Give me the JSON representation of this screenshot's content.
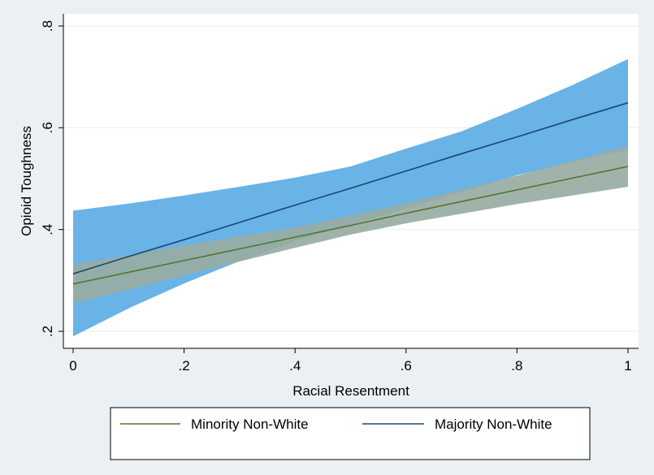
{
  "chart_data": {
    "type": "line",
    "xlabel": "Racial Resentment",
    "ylabel": "Opioid Toughness",
    "xlim": [
      0,
      1
    ],
    "ylim": [
      0.2,
      0.8
    ],
    "x_ticks": [
      {
        "value": 0,
        "label": "0"
      },
      {
        "value": 0.2,
        "label": ".2"
      },
      {
        "value": 0.4,
        "label": ".4"
      },
      {
        "value": 0.6,
        "label": ".6"
      },
      {
        "value": 0.8,
        "label": ".8"
      },
      {
        "value": 1,
        "label": "1"
      }
    ],
    "y_ticks": [
      {
        "value": 0.2,
        "label": ".2"
      },
      {
        "value": 0.4,
        "label": ".4"
      },
      {
        "value": 0.6,
        "label": ".6"
      },
      {
        "value": 0.8,
        "label": ".8"
      }
    ],
    "grid": "horizontal",
    "legend_position": "bottom",
    "series": [
      {
        "name": "Majority Non-White",
        "color": "#1a476f",
        "band_color": "#69b3e7",
        "x": [
          0,
          0.1,
          0.2,
          0.3,
          0.4,
          0.5,
          0.6,
          0.7,
          0.8,
          0.9,
          1
        ],
        "y": [
          0.313,
          0.347,
          0.38,
          0.414,
          0.448,
          0.481,
          0.515,
          0.549,
          0.582,
          0.616,
          0.649
        ],
        "lower": [
          0.19,
          0.245,
          0.294,
          0.338,
          0.377,
          0.409,
          0.441,
          0.473,
          0.507,
          0.532,
          0.557
        ],
        "upper": [
          0.437,
          0.451,
          0.467,
          0.484,
          0.502,
          0.524,
          0.559,
          0.593,
          0.637,
          0.684,
          0.735
        ]
      },
      {
        "name": "Minority Non-White",
        "color": "#55752f",
        "band_color": "#98aca3",
        "x": [
          0,
          0.1,
          0.2,
          0.3,
          0.4,
          0.5,
          0.6,
          0.7,
          0.8,
          0.9,
          1
        ],
        "y": [
          0.293,
          0.316,
          0.339,
          0.362,
          0.385,
          0.408,
          0.432,
          0.455,
          0.478,
          0.501,
          0.524
        ],
        "lower": [
          0.255,
          0.282,
          0.31,
          0.337,
          0.364,
          0.39,
          0.412,
          0.431,
          0.45,
          0.467,
          0.484
        ],
        "upper": [
          0.331,
          0.35,
          0.368,
          0.386,
          0.404,
          0.427,
          0.452,
          0.479,
          0.506,
          0.535,
          0.565
        ]
      }
    ],
    "legend": [
      {
        "label": "Minority Non-White",
        "color": "#55752f"
      },
      {
        "label": "Majority Non-White",
        "color": "#1a476f"
      }
    ]
  }
}
